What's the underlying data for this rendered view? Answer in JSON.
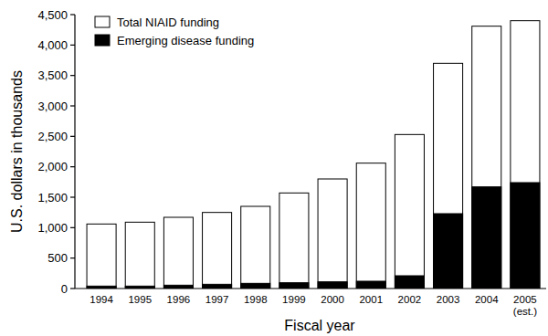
{
  "chart_data": {
    "type": "bar",
    "x_label": "Fiscal year",
    "y_label": "U.S. dollars in thousands",
    "categories": [
      "1994",
      "1995",
      "1996",
      "1997",
      "1998",
      "1999",
      "2000",
      "2001",
      "2002",
      "2003",
      "2004",
      "2005 (est.)"
    ],
    "series": [
      {
        "name": "Total NIAID funding",
        "color": "#ffffff",
        "values": [
          1060,
          1090,
          1170,
          1250,
          1350,
          1570,
          1800,
          2060,
          2530,
          3700,
          4310,
          4400
        ]
      },
      {
        "name": "Emerging disease funding",
        "color": "#000000",
        "values": [
          40,
          40,
          55,
          70,
          85,
          95,
          110,
          120,
          210,
          1230,
          1670,
          1740
        ]
      }
    ],
    "ylim": [
      0,
      4500
    ],
    "yticks": [
      0,
      500,
      {
        "value": 1000,
        "label": "1,000"
      },
      {
        "value": 1500,
        "label": "1,500"
      },
      {
        "value": 2000,
        "label": "2,000"
      },
      {
        "value": 2500,
        "label": "2,500"
      },
      {
        "value": 3000,
        "label": "3,000"
      },
      {
        "value": 3500,
        "label": "3,500"
      },
      {
        "value": 4000,
        "label": "4,000"
      },
      {
        "value": 4500,
        "label": "4,500"
      }
    ],
    "grid": false,
    "legend": "upper left"
  }
}
